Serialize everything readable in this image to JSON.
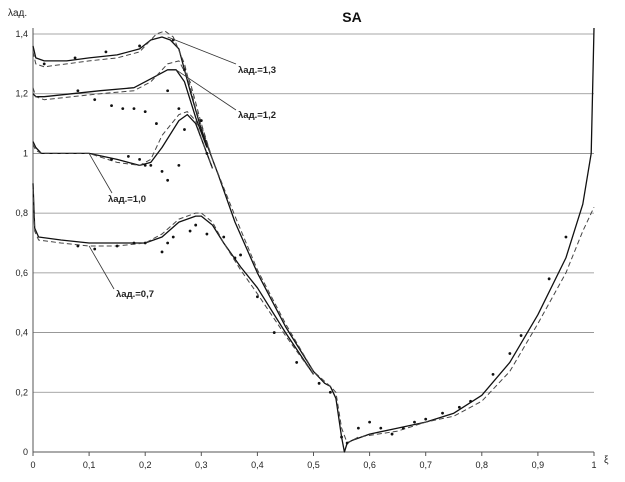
{
  "chart_data": {
    "type": "line",
    "title": "SA",
    "ylabel": "λад.",
    "xlabel": "ξ",
    "xlim": [
      0,
      1
    ],
    "ylim": [
      0,
      1.4
    ],
    "grid": true,
    "legend": "none",
    "x_ticks": [
      "0",
      "0,1",
      "0,2",
      "0,3",
      "0,4",
      "0,5",
      "0,6",
      "0,7",
      "0,8",
      "0,9",
      "1"
    ],
    "y_ticks": [
      "0",
      "0,2",
      "0,4",
      "0,6",
      "0,8",
      "1",
      "1,2",
      "1,4"
    ],
    "annotations": [
      {
        "text": "λад.=1,3",
        "arrow_to": [
          0.24,
          1.39
        ]
      },
      {
        "text": "λад.=1,2",
        "arrow_to": [
          0.255,
          1.28
        ]
      },
      {
        "text": "λад.=1,0",
        "arrow_to": [
          0.1,
          1.0
        ]
      },
      {
        "text": "λад.=0,7",
        "arrow_to": [
          0.1,
          0.69
        ]
      }
    ],
    "series": [
      {
        "style": "solid",
        "values": [
          [
            0,
            1.36
          ],
          [
            0.005,
            1.32
          ],
          [
            0.02,
            1.31
          ],
          [
            0.06,
            1.31
          ],
          [
            0.1,
            1.32
          ],
          [
            0.15,
            1.33
          ],
          [
            0.19,
            1.35
          ],
          [
            0.21,
            1.38
          ],
          [
            0.23,
            1.39
          ],
          [
            0.245,
            1.38
          ],
          [
            0.26,
            1.35
          ],
          [
            0.28,
            1.21
          ],
          [
            0.3,
            1.08
          ],
          [
            0.33,
            0.93
          ],
          [
            0.36,
            0.77
          ],
          [
            0.4,
            0.6
          ],
          [
            0.45,
            0.42
          ],
          [
            0.5,
            0.27
          ],
          [
            0.52,
            0.23
          ],
          [
            0.53,
            0.22
          ],
          [
            0.54,
            0.18
          ],
          [
            0.55,
            0.05
          ],
          [
            0.555,
            0.0
          ],
          [
            0.56,
            0.03
          ],
          [
            0.57,
            0.04
          ],
          [
            0.6,
            0.06
          ],
          [
            0.65,
            0.08
          ],
          [
            0.7,
            0.1
          ],
          [
            0.75,
            0.13
          ],
          [
            0.8,
            0.19
          ],
          [
            0.85,
            0.3
          ],
          [
            0.9,
            0.46
          ],
          [
            0.95,
            0.65
          ],
          [
            0.98,
            0.83
          ],
          [
            0.995,
            1.0
          ],
          [
            1.0,
            1.42
          ]
        ]
      },
      {
        "style": "dashed",
        "values": [
          [
            0,
            1.34
          ],
          [
            0.005,
            1.3
          ],
          [
            0.02,
            1.29
          ],
          [
            0.06,
            1.3
          ],
          [
            0.1,
            1.31
          ],
          [
            0.15,
            1.32
          ],
          [
            0.19,
            1.34
          ],
          [
            0.22,
            1.4
          ],
          [
            0.235,
            1.41
          ],
          [
            0.25,
            1.39
          ],
          [
            0.27,
            1.3
          ],
          [
            0.29,
            1.15
          ],
          [
            0.32,
            0.98
          ],
          [
            0.36,
            0.79
          ],
          [
            0.4,
            0.61
          ],
          [
            0.45,
            0.43
          ],
          [
            0.5,
            0.27
          ],
          [
            0.53,
            0.22
          ],
          [
            0.54,
            0.2
          ],
          [
            0.55,
            0.08
          ],
          [
            0.56,
            0.03
          ],
          [
            0.58,
            0.05
          ],
          [
            0.65,
            0.07
          ],
          [
            0.7,
            0.1
          ],
          [
            0.75,
            0.12
          ],
          [
            0.8,
            0.17
          ],
          [
            0.85,
            0.27
          ],
          [
            0.9,
            0.43
          ],
          [
            0.95,
            0.6
          ],
          [
            0.98,
            0.74
          ],
          [
            1.0,
            0.82
          ]
        ]
      },
      {
        "style": "solid",
        "values": [
          [
            0,
            1.2
          ],
          [
            0.005,
            1.19
          ],
          [
            0.02,
            1.19
          ],
          [
            0.07,
            1.2
          ],
          [
            0.12,
            1.21
          ],
          [
            0.18,
            1.22
          ],
          [
            0.21,
            1.25
          ],
          [
            0.24,
            1.28
          ],
          [
            0.255,
            1.28
          ],
          [
            0.27,
            1.24
          ],
          [
            0.29,
            1.12
          ],
          [
            0.31,
            1.02
          ]
        ]
      },
      {
        "style": "dashed",
        "values": [
          [
            0,
            1.22
          ],
          [
            0.005,
            1.19
          ],
          [
            0.02,
            1.18
          ],
          [
            0.07,
            1.19
          ],
          [
            0.12,
            1.2
          ],
          [
            0.18,
            1.21
          ],
          [
            0.21,
            1.24
          ],
          [
            0.24,
            1.3
          ],
          [
            0.26,
            1.31
          ],
          [
            0.28,
            1.24
          ],
          [
            0.3,
            1.1
          ],
          [
            0.32,
            0.98
          ]
        ]
      },
      {
        "style": "solid",
        "values": [
          [
            0,
            1.04
          ],
          [
            0.005,
            1.02
          ],
          [
            0.015,
            1.0
          ],
          [
            0.05,
            1.0
          ],
          [
            0.1,
            1.0
          ],
          [
            0.15,
            0.98
          ],
          [
            0.19,
            0.96
          ],
          [
            0.21,
            0.97
          ],
          [
            0.23,
            1.02
          ],
          [
            0.26,
            1.11
          ],
          [
            0.275,
            1.13
          ],
          [
            0.29,
            1.1
          ],
          [
            0.3,
            1.05
          ],
          [
            0.32,
            0.95
          ]
        ]
      },
      {
        "style": "dashed",
        "values": [
          [
            0,
            1.03
          ],
          [
            0.005,
            1.01
          ],
          [
            0.015,
            1.0
          ],
          [
            0.05,
            1.0
          ],
          [
            0.1,
            1.0
          ],
          [
            0.15,
            0.97
          ],
          [
            0.19,
            0.96
          ],
          [
            0.21,
            0.98
          ],
          [
            0.23,
            1.06
          ],
          [
            0.26,
            1.13
          ],
          [
            0.275,
            1.14
          ],
          [
            0.29,
            1.11
          ],
          [
            0.3,
            1.05
          ],
          [
            0.32,
            0.95
          ]
        ]
      },
      {
        "style": "solid",
        "values": [
          [
            0,
            0.9
          ],
          [
            0.003,
            0.75
          ],
          [
            0.01,
            0.72
          ],
          [
            0.05,
            0.71
          ],
          [
            0.1,
            0.7
          ],
          [
            0.15,
            0.7
          ],
          [
            0.2,
            0.7
          ],
          [
            0.23,
            0.72
          ],
          [
            0.26,
            0.77
          ],
          [
            0.29,
            0.79
          ],
          [
            0.3,
            0.79
          ],
          [
            0.32,
            0.76
          ],
          [
            0.34,
            0.7
          ],
          [
            0.37,
            0.62
          ],
          [
            0.4,
            0.55
          ],
          [
            0.45,
            0.4
          ],
          [
            0.5,
            0.26
          ]
        ]
      },
      {
        "style": "dashed",
        "values": [
          [
            0,
            0.88
          ],
          [
            0.003,
            0.74
          ],
          [
            0.01,
            0.71
          ],
          [
            0.05,
            0.7
          ],
          [
            0.1,
            0.69
          ],
          [
            0.15,
            0.69
          ],
          [
            0.2,
            0.7
          ],
          [
            0.23,
            0.73
          ],
          [
            0.26,
            0.78
          ],
          [
            0.29,
            0.8
          ],
          [
            0.3,
            0.8
          ],
          [
            0.32,
            0.77
          ],
          [
            0.34,
            0.7
          ],
          [
            0.37,
            0.61
          ],
          [
            0.4,
            0.53
          ],
          [
            0.45,
            0.39
          ],
          [
            0.5,
            0.26
          ]
        ]
      },
      {
        "style": "markers",
        "values": [
          [
            0.02,
            1.3
          ],
          [
            0.075,
            1.32
          ],
          [
            0.13,
            1.34
          ],
          [
            0.19,
            1.36
          ],
          [
            0.25,
            1.38
          ],
          [
            0.27,
            1.28
          ],
          [
            0.24,
            1.21
          ],
          [
            0.26,
            1.15
          ],
          [
            0.3,
            1.11
          ],
          [
            0.08,
            1.21
          ],
          [
            0.11,
            1.18
          ],
          [
            0.14,
            1.16
          ],
          [
            0.16,
            1.15
          ],
          [
            0.18,
            1.15
          ],
          [
            0.2,
            1.14
          ],
          [
            0.22,
            1.1
          ],
          [
            0.27,
            1.08
          ],
          [
            0.31,
            1.0
          ],
          [
            0.14,
            0.98
          ],
          [
            0.17,
            0.99
          ],
          [
            0.19,
            0.98
          ],
          [
            0.2,
            0.96
          ],
          [
            0.21,
            0.96
          ],
          [
            0.23,
            0.94
          ],
          [
            0.24,
            0.91
          ],
          [
            0.26,
            0.96
          ],
          [
            0.08,
            0.69
          ],
          [
            0.11,
            0.68
          ],
          [
            0.15,
            0.69
          ],
          [
            0.18,
            0.7
          ],
          [
            0.2,
            0.7
          ],
          [
            0.23,
            0.67
          ],
          [
            0.24,
            0.7
          ],
          [
            0.25,
            0.72
          ],
          [
            0.28,
            0.74
          ],
          [
            0.29,
            0.76
          ],
          [
            0.31,
            0.73
          ],
          [
            0.34,
            0.72
          ],
          [
            0.36,
            0.65
          ],
          [
            0.37,
            0.66
          ],
          [
            0.4,
            0.52
          ],
          [
            0.43,
            0.4
          ],
          [
            0.47,
            0.3
          ],
          [
            0.51,
            0.23
          ],
          [
            0.53,
            0.2
          ],
          [
            0.55,
            0.05
          ],
          [
            0.56,
            0.03
          ],
          [
            0.58,
            0.08
          ],
          [
            0.6,
            0.1
          ],
          [
            0.62,
            0.08
          ],
          [
            0.64,
            0.06
          ],
          [
            0.66,
            0.08
          ],
          [
            0.68,
            0.1
          ],
          [
            0.7,
            0.11
          ],
          [
            0.73,
            0.13
          ],
          [
            0.76,
            0.15
          ],
          [
            0.78,
            0.17
          ],
          [
            0.82,
            0.26
          ],
          [
            0.85,
            0.33
          ],
          [
            0.87,
            0.39
          ],
          [
            0.92,
            0.58
          ],
          [
            0.95,
            0.72
          ]
        ]
      }
    ]
  }
}
